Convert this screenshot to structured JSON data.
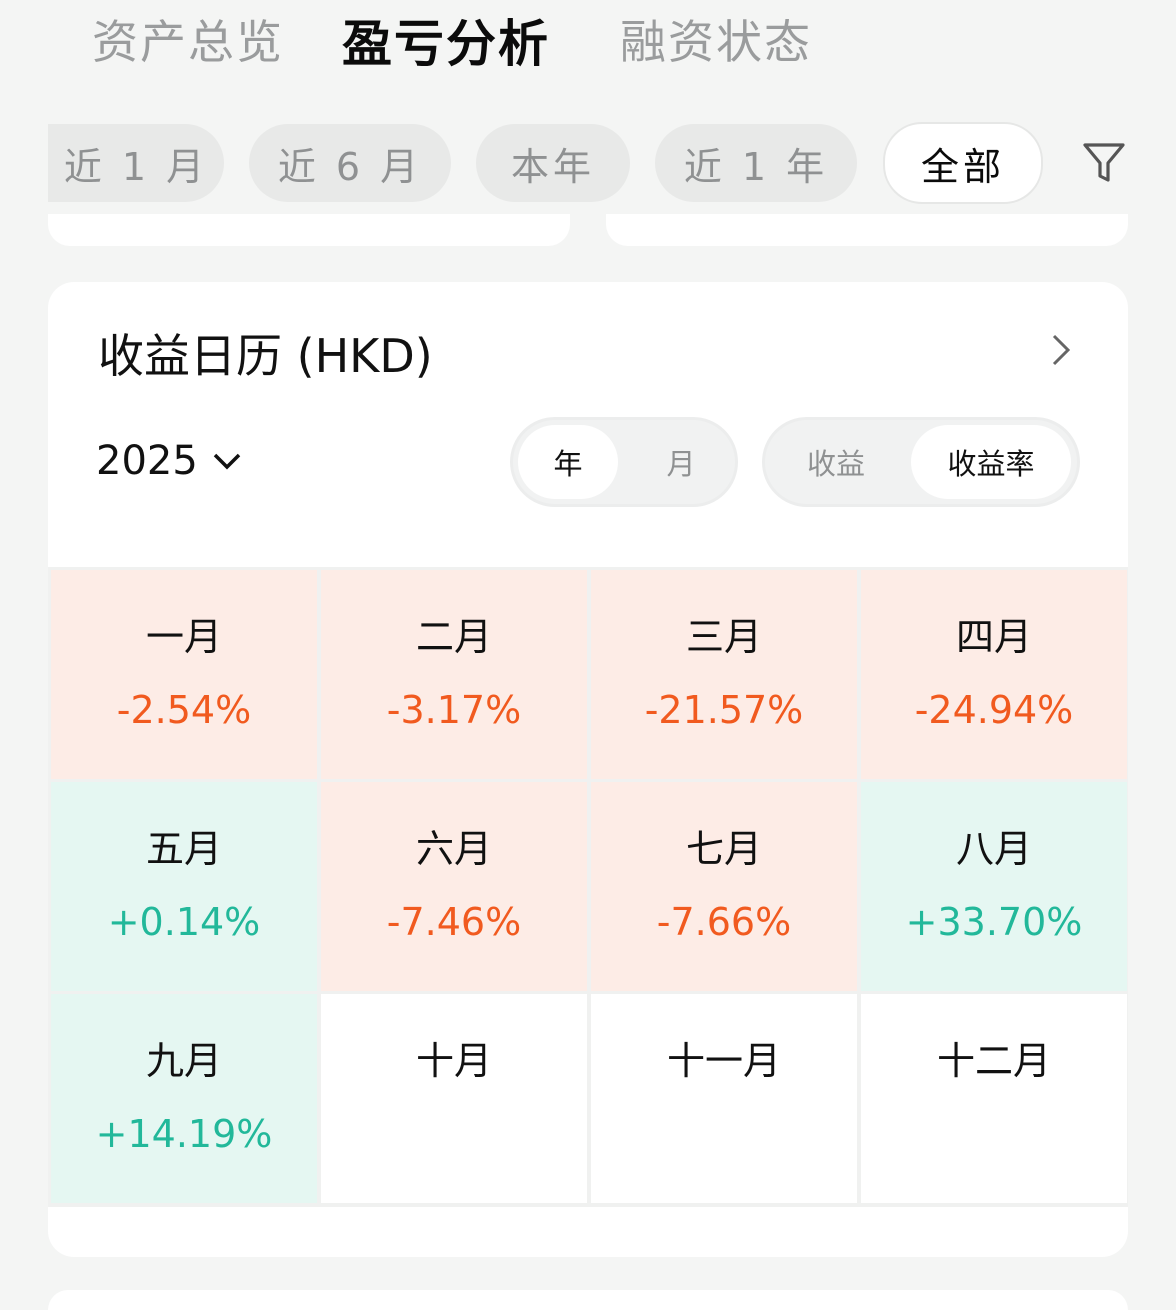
{
  "tabs": [
    "资产总览",
    "盈亏分析",
    "融资状态"
  ],
  "filters": [
    "近 1 月",
    "近 6 月",
    "本年",
    "近 1 年",
    "全部"
  ],
  "calendar": {
    "title": "收益日历 (HKD)",
    "year": "2025",
    "period_toggle": [
      "年",
      "月"
    ],
    "metric_toggle": [
      "收益",
      "收益率"
    ],
    "months": [
      {
        "name": "一月",
        "value": "-2.54%"
      },
      {
        "name": "二月",
        "value": "-3.17%"
      },
      {
        "name": "三月",
        "value": "-21.57%"
      },
      {
        "name": "四月",
        "value": "-24.94%"
      },
      {
        "name": "五月",
        "value": "+0.14%"
      },
      {
        "name": "六月",
        "value": "-7.46%"
      },
      {
        "name": "七月",
        "value": "-7.66%"
      },
      {
        "name": "八月",
        "value": "+33.70%"
      },
      {
        "name": "九月",
        "value": "+14.19%"
      },
      {
        "name": "十月",
        "value": ""
      },
      {
        "name": "十一月",
        "value": ""
      },
      {
        "name": "十二月",
        "value": ""
      }
    ]
  },
  "colors": {
    "loss": "#f15a1f",
    "gain": "#22b89a",
    "loss_bg": "#fdece6",
    "gain_bg": "#e5f7f2"
  }
}
